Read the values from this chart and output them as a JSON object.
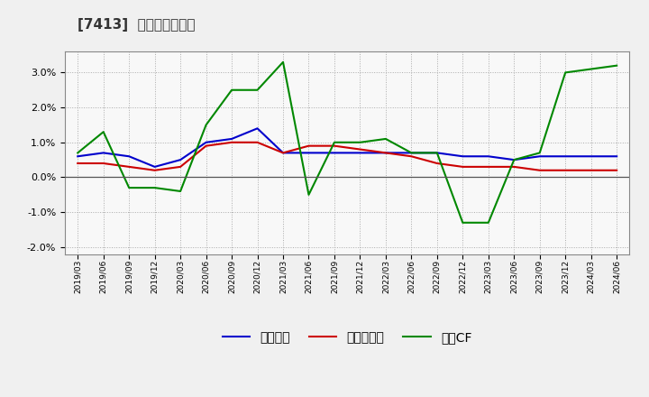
{
  "title": "[7413]  マージンの推移",
  "x_labels": [
    "2019/03",
    "2019/06",
    "2019/09",
    "2019/12",
    "2020/03",
    "2020/06",
    "2020/09",
    "2020/12",
    "2021/03",
    "2021/06",
    "2021/09",
    "2021/12",
    "2022/03",
    "2022/06",
    "2022/09",
    "2022/12",
    "2023/03",
    "2023/06",
    "2023/09",
    "2023/12",
    "2024/03",
    "2024/06"
  ],
  "keijo_rieki": [
    0.006,
    0.007,
    0.006,
    0.003,
    0.005,
    0.01,
    0.011,
    0.014,
    0.007,
    0.007,
    0.007,
    0.007,
    0.007,
    0.007,
    0.007,
    0.006,
    0.006,
    0.005,
    0.006,
    0.006,
    0.006,
    0.006
  ],
  "touki_junseki": [
    0.004,
    0.004,
    0.003,
    0.002,
    0.003,
    0.009,
    0.01,
    0.01,
    0.007,
    0.009,
    0.009,
    0.008,
    0.007,
    0.006,
    0.004,
    0.003,
    0.003,
    0.003,
    0.002,
    0.002,
    0.002,
    0.002
  ],
  "eigyo_cf": [
    0.007,
    0.013,
    -0.003,
    -0.003,
    -0.004,
    0.015,
    0.025,
    0.025,
    0.033,
    -0.005,
    0.01,
    0.01,
    0.011,
    0.007,
    0.007,
    -0.013,
    -0.013,
    0.005,
    0.007,
    0.03,
    0.031,
    0.032
  ],
  "keijo_color": "#0000cc",
  "touki_color": "#cc0000",
  "eigyo_color": "#008800",
  "ylim": [
    -0.022,
    0.036
  ],
  "yticks": [
    -0.02,
    -0.01,
    0.0,
    0.01,
    0.02,
    0.03
  ],
  "fig_bg": "#f0f0f0",
  "ax_bg": "#f8f8f8",
  "legend_labels": [
    "経常利益",
    "当期純利益",
    "営業CF"
  ]
}
